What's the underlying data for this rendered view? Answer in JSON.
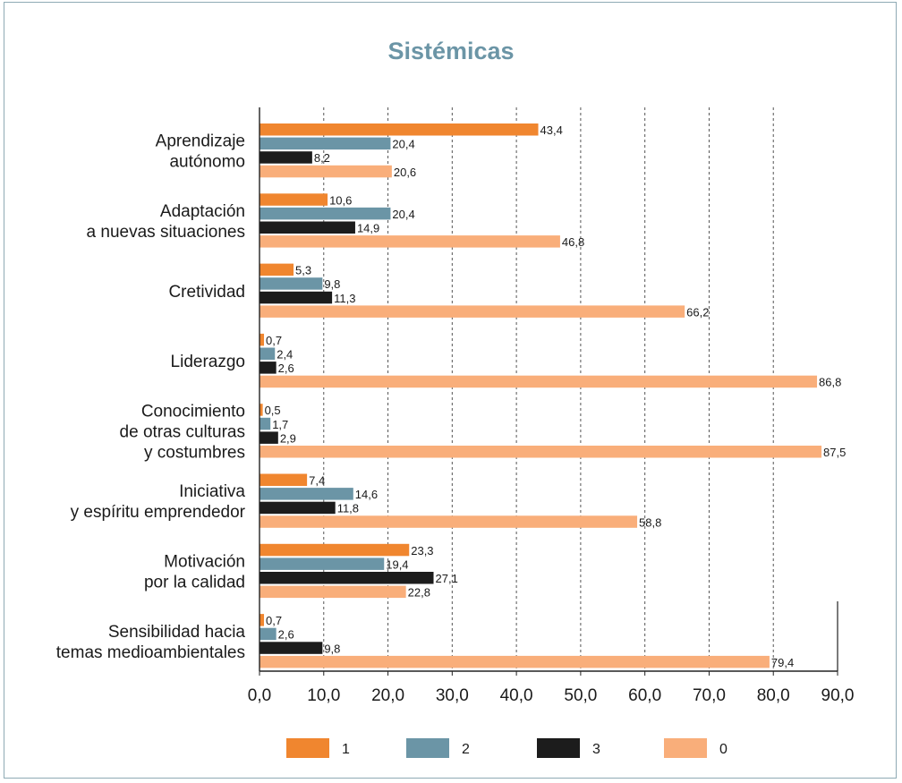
{
  "colors": {
    "title": "#6b95a6",
    "frame": "#8eaab4",
    "grid": "#555555",
    "axis": "#222222"
  },
  "chart_data": {
    "type": "bar",
    "orientation": "horizontal",
    "title": "Sistémicas",
    "xlim": [
      0,
      90
    ],
    "xticks": [
      "0,0",
      "10,0",
      "20,0",
      "30,0",
      "40,0",
      "50,0",
      "60,0",
      "70,0",
      "80,0",
      "90,0"
    ],
    "grid": "vertical dashed",
    "legend_position": "bottom",
    "categories": [
      [
        "Aprendizaje",
        "autónomo"
      ],
      [
        "Adaptación",
        "a nuevas situaciones"
      ],
      [
        "Cretividad"
      ],
      [
        "Liderazgo"
      ],
      [
        "Conocimiento",
        "de otras culturas",
        "y costumbres"
      ],
      [
        "Iniciativa",
        "y espíritu emprendedor"
      ],
      [
        "Motivación",
        "por la calidad"
      ],
      [
        "Sensibilidad hacia",
        "temas medioambientales"
      ]
    ],
    "series": [
      {
        "name": "1",
        "color": "#f0862f",
        "values": [
          43.4,
          10.6,
          5.3,
          0.7,
          0.5,
          7.4,
          23.3,
          0.7
        ],
        "labels": [
          "43,4",
          "10,6",
          "5,3",
          "0,7",
          "0,5",
          "7,4",
          "23,3",
          "0,7"
        ]
      },
      {
        "name": "2",
        "color": "#6b95a6",
        "values": [
          20.4,
          20.4,
          9.8,
          2.4,
          1.7,
          14.6,
          19.4,
          2.6
        ],
        "labels": [
          "20,4",
          "20,4",
          "9,8",
          "2,4",
          "1,7",
          "14,6",
          "19,4",
          "2,6"
        ]
      },
      {
        "name": "3",
        "color": "#1c1c1c",
        "values": [
          8.2,
          14.9,
          11.3,
          2.6,
          2.9,
          11.8,
          27.1,
          9.8
        ],
        "labels": [
          "8,2",
          "14,9",
          "11,3",
          "2,6",
          "2,9",
          "11,8",
          "27,1",
          "9,8"
        ]
      },
      {
        "name": "0",
        "color": "#f9ae7a",
        "values": [
          20.6,
          46.8,
          66.2,
          86.8,
          87.5,
          58.8,
          22.8,
          79.4
        ],
        "labels": [
          "20,6",
          "46,8",
          "66,2",
          "86,8",
          "87,5",
          "58,8",
          "22,8",
          "79,4"
        ]
      }
    ]
  }
}
